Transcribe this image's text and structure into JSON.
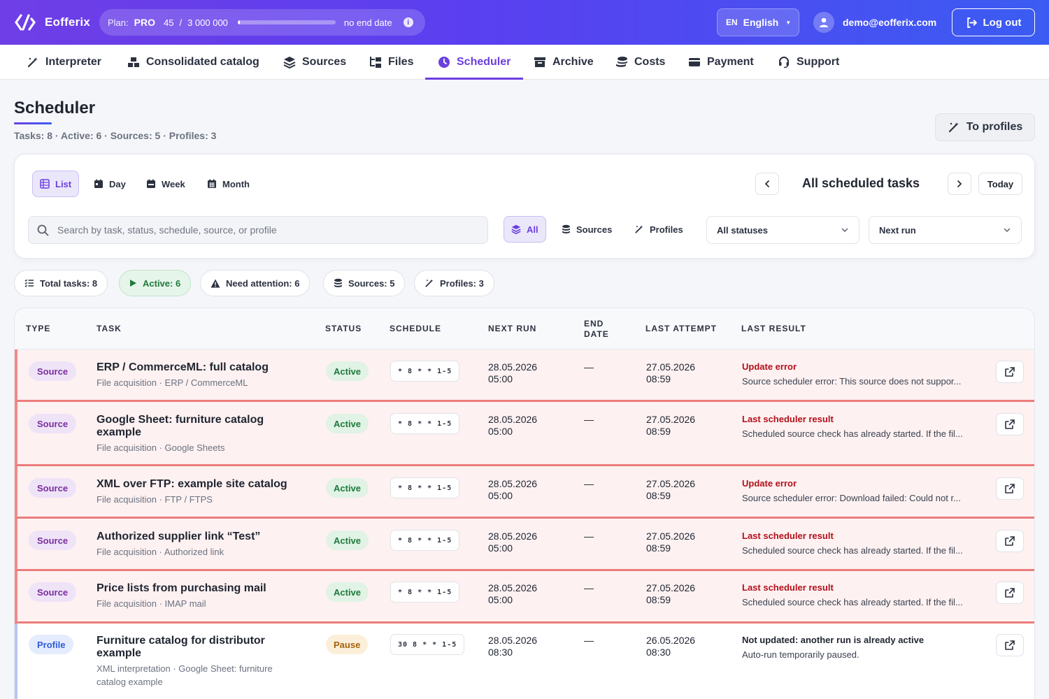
{
  "app": {
    "brand": "Eofferix",
    "plan_label": "Plan:",
    "plan_name": "PRO",
    "plan_used": "45",
    "plan_sep": "/",
    "plan_total": "3 000 000",
    "plan_usage_fraction": 1.5e-05,
    "plan_end": "no end date",
    "lang_code": "EN",
    "lang_name": "English",
    "user_email": "demo@eofferix.com",
    "logout_label": "Log out"
  },
  "nav": {
    "items": [
      {
        "label": "Interpreter",
        "icon": "magic-wand-icon"
      },
      {
        "label": "Consolidated catalog",
        "icon": "boxes-icon"
      },
      {
        "label": "Sources",
        "icon": "layers-icon"
      },
      {
        "label": "Files",
        "icon": "folder-tree-icon"
      },
      {
        "label": "Scheduler",
        "icon": "clock-icon",
        "active": true
      },
      {
        "label": "Archive",
        "icon": "archive-icon"
      },
      {
        "label": "Costs",
        "icon": "coins-icon"
      },
      {
        "label": "Payment",
        "icon": "credit-card-icon"
      },
      {
        "label": "Support",
        "icon": "headset-icon"
      }
    ]
  },
  "header": {
    "title": "Scheduler",
    "stats": "Tasks: 8 · Active: 6 · Sources: 5 · Profiles: 3",
    "to_profiles": "To profiles"
  },
  "filters": {
    "views": [
      "List",
      "Day",
      "Week",
      "Month"
    ],
    "active_view": "List",
    "range_label": "All scheduled tasks",
    "today_label": "Today",
    "search_placeholder": "Search by task, status, schedule, source, or profile",
    "scopes": [
      "All",
      "Sources",
      "Profiles"
    ],
    "status_select": "All statuses",
    "sort_select": "Next run"
  },
  "chips": {
    "total": "Total tasks: 8",
    "active": "Active: 6",
    "attention": "Need attention: 6",
    "sources": "Sources: 5",
    "profiles": "Profiles: 3"
  },
  "table": {
    "columns": [
      "TYPE",
      "TASK",
      "STATUS",
      "SCHEDULE",
      "NEXT RUN",
      "END DATE",
      "LAST ATTEMPT",
      "LAST RESULT"
    ],
    "rows": [
      {
        "type": "Source",
        "title": "ERP / CommerceML: full catalog",
        "sub": "File acquisition · ERP / CommerceML",
        "status": "Active",
        "cron": "* 8 * * 1-5",
        "next_run_date": "28.05.2026",
        "next_run_time": "05:00",
        "end_date": "—",
        "last_attempt_date": "27.05.2026",
        "last_attempt_time": "08:59",
        "result_title": "Update error",
        "result_text": "Source scheduler error: This source does not suppor..."
      },
      {
        "type": "Source",
        "title": "Google Sheet: furniture catalog example",
        "sub": "File acquisition · Google Sheets",
        "status": "Active",
        "cron": "* 8 * * 1-5",
        "next_run_date": "28.05.2026",
        "next_run_time": "05:00",
        "end_date": "—",
        "last_attempt_date": "27.05.2026",
        "last_attempt_time": "08:59",
        "result_title": "Last scheduler result",
        "result_text": "Scheduled source check has already started. If the fil..."
      },
      {
        "type": "Source",
        "title": "XML over FTP: example site catalog",
        "sub": "File acquisition · FTP / FTPS",
        "status": "Active",
        "cron": "* 8 * * 1-5",
        "next_run_date": "28.05.2026",
        "next_run_time": "05:00",
        "end_date": "—",
        "last_attempt_date": "27.05.2026",
        "last_attempt_time": "08:59",
        "result_title": "Update error",
        "result_text": "Source scheduler error: Download failed: Could not r..."
      },
      {
        "type": "Source",
        "title": "Authorized supplier link “Test”",
        "sub": "File acquisition · Authorized link",
        "status": "Active",
        "cron": "* 8 * * 1-5",
        "next_run_date": "28.05.2026",
        "next_run_time": "05:00",
        "end_date": "—",
        "last_attempt_date": "27.05.2026",
        "last_attempt_time": "08:59",
        "result_title": "Last scheduler result",
        "result_text": "Scheduled source check has already started. If the fil..."
      },
      {
        "type": "Source",
        "title": "Price lists from purchasing mail",
        "sub": "File acquisition · IMAP mail",
        "status": "Active",
        "cron": "* 8 * * 1-5",
        "next_run_date": "28.05.2026",
        "next_run_time": "05:00",
        "end_date": "—",
        "last_attempt_date": "27.05.2026",
        "last_attempt_time": "08:59",
        "result_title": "Last scheduler result",
        "result_text": "Scheduled source check has already started. If the fil..."
      },
      {
        "type": "Profile",
        "title": "Furniture catalog for distributor example",
        "sub": "XML interpretation · Google Sheet: furniture catalog example",
        "status": "Pause",
        "cron": "30 8 * * 1-5",
        "next_run_date": "28.05.2026",
        "next_run_time": "08:30",
        "end_date": "—",
        "last_attempt_date": "26.05.2026",
        "last_attempt_time": "08:30",
        "result_title": "Not updated: another run is already active",
        "result_text": "Auto-run temporarily paused."
      }
    ]
  }
}
